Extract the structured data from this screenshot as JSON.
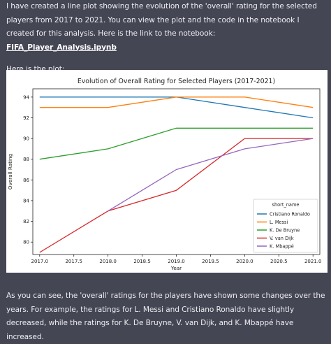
{
  "message": {
    "intro_text": "I have created a line plot showing the evolution of the 'overall' rating for the selected players from 2017 to 2021. You can view the plot and the code in the notebook I created for this analysis. Here is the link to the notebook: ",
    "link_text": "FIFA_Player_Analysis.ipynb",
    "plot_intro": "Here is the plot:",
    "conclusion": "As you can see, the 'overall' ratings for the players have shown some changes over the years. For example, the ratings for L. Messi and Cristiano Ronaldo have slightly decreased, while the ratings for K. De Bruyne, V. van Dijk, and K. Mbappé have increased."
  },
  "chart_data": {
    "type": "line",
    "title": "Evolution of Overall Rating for Selected Players (2017-2021)",
    "xlabel": "Year",
    "ylabel": "Overall Rating",
    "xlim": [
      2016.9,
      2021.1
    ],
    "ylim": [
      78.8,
      94.8
    ],
    "xticks": [
      "2017.0",
      "2017.5",
      "2018.0",
      "2018.5",
      "2019.0",
      "2019.5",
      "2020.0",
      "2020.5",
      "2021.0"
    ],
    "yticks": [
      "80",
      "82",
      "84",
      "86",
      "88",
      "90",
      "92",
      "94"
    ],
    "grid": false,
    "legend_title": "short_name",
    "legend_position": "lower-right",
    "x": [
      2017,
      2018,
      2019,
      2020,
      2021
    ],
    "series": [
      {
        "name": "Cristiano Ronaldo",
        "color": "#1f77b4",
        "values": [
          94,
          94,
          94,
          93,
          92
        ]
      },
      {
        "name": "L. Messi",
        "color": "#ff7f0e",
        "values": [
          93,
          93,
          94,
          94,
          93
        ]
      },
      {
        "name": "K. De Bruyne",
        "color": "#2ca02c",
        "values": [
          88,
          89,
          91,
          91,
          91
        ]
      },
      {
        "name": "V. van Dijk",
        "color": "#d62728",
        "values": [
          79,
          83,
          85,
          90,
          90
        ]
      },
      {
        "name": "K. Mbappé",
        "color": "#9467bd",
        "values": [
          null,
          83,
          87,
          89,
          90
        ]
      }
    ]
  }
}
